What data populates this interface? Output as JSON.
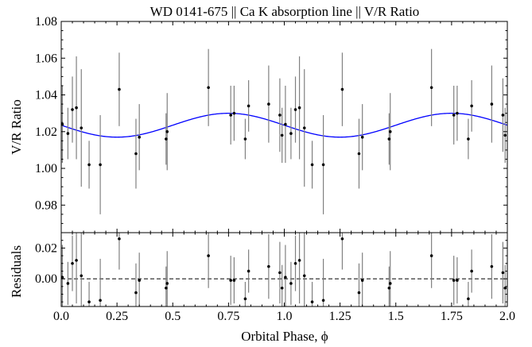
{
  "chart_data": [
    {
      "panel": "main",
      "type": "scatter",
      "title": "WD 0141-675 || Ca K absorption line || V/R Ratio",
      "xlabel": "",
      "ylabel": "V/R Ratio",
      "xlim": [
        0.0,
        2.0
      ],
      "ylim": [
        0.965,
        1.08
      ],
      "yticks": [
        "0.98",
        "1.00",
        "1.02",
        "1.04",
        "1.06",
        "1.08"
      ],
      "grid": false,
      "model_curve": {
        "type": "sinusoid",
        "mean": 1.0235,
        "amplitude": 0.0065,
        "period": 1.0,
        "peak_phase": 0.75,
        "color": "#0000ff"
      },
      "series": [
        {
          "marker_color": "#000000",
          "errorbar_color": "#808080",
          "points": [
            {
              "x": 0.005,
              "y": 1.024,
              "err": 0.021
            },
            {
              "x": 0.03,
              "y": 1.019,
              "err": 0.014
            },
            {
              "x": 0.05,
              "y": 1.032,
              "err": 0.018
            },
            {
              "x": 0.068,
              "y": 1.033,
              "err": 0.028
            },
            {
              "x": 0.09,
              "y": 1.022,
              "err": 0.032
            },
            {
              "x": 0.125,
              "y": 1.002,
              "err": 0.013
            },
            {
              "x": 0.175,
              "y": 1.002,
              "err": 0.027
            },
            {
              "x": 0.26,
              "y": 1.043,
              "err": 0.02
            },
            {
              "x": 0.335,
              "y": 1.008,
              "err": 0.019
            },
            {
              "x": 0.35,
              "y": 1.017,
              "err": 0.018
            },
            {
              "x": 0.47,
              "y": 1.016,
              "err": 0.014
            },
            {
              "x": 0.475,
              "y": 1.02,
              "err": 0.021
            },
            {
              "x": 0.66,
              "y": 1.044,
              "err": 0.021
            },
            {
              "x": 0.76,
              "y": 1.029,
              "err": 0.016
            },
            {
              "x": 0.775,
              "y": 1.03,
              "err": 0.015
            },
            {
              "x": 0.825,
              "y": 1.016,
              "err": 0.011
            },
            {
              "x": 0.84,
              "y": 1.034,
              "err": 0.014
            },
            {
              "x": 0.93,
              "y": 1.035,
              "err": 0.021
            },
            {
              "x": 0.98,
              "y": 1.029,
              "err": 0.02
            },
            {
              "x": 0.99,
              "y": 1.018,
              "err": 0.015
            },
            {
              "x": 1.005,
              "y": 1.024,
              "err": 0.021
            },
            {
              "x": 1.03,
              "y": 1.019,
              "err": 0.014
            },
            {
              "x": 1.05,
              "y": 1.032,
              "err": 0.018
            },
            {
              "x": 1.068,
              "y": 1.033,
              "err": 0.028
            },
            {
              "x": 1.09,
              "y": 1.022,
              "err": 0.032
            },
            {
              "x": 1.125,
              "y": 1.002,
              "err": 0.013
            },
            {
              "x": 1.175,
              "y": 1.002,
              "err": 0.027
            },
            {
              "x": 1.26,
              "y": 1.043,
              "err": 0.02
            },
            {
              "x": 1.335,
              "y": 1.008,
              "err": 0.019
            },
            {
              "x": 1.35,
              "y": 1.017,
              "err": 0.018
            },
            {
              "x": 1.47,
              "y": 1.016,
              "err": 0.014
            },
            {
              "x": 1.475,
              "y": 1.02,
              "err": 0.021
            },
            {
              "x": 1.66,
              "y": 1.044,
              "err": 0.021
            },
            {
              "x": 1.76,
              "y": 1.029,
              "err": 0.016
            },
            {
              "x": 1.775,
              "y": 1.03,
              "err": 0.015
            },
            {
              "x": 1.825,
              "y": 1.016,
              "err": 0.011
            },
            {
              "x": 1.84,
              "y": 1.034,
              "err": 0.014
            },
            {
              "x": 1.93,
              "y": 1.035,
              "err": 0.021
            },
            {
              "x": 1.98,
              "y": 1.029,
              "err": 0.02
            },
            {
              "x": 1.99,
              "y": 1.018,
              "err": 0.015
            }
          ]
        }
      ]
    },
    {
      "panel": "residuals",
      "type": "scatter",
      "title": "",
      "xlabel": "Orbital Phase, ϕ",
      "ylabel": "Residuals",
      "xlim": [
        0.0,
        2.0
      ],
      "ylim": [
        -0.018,
        0.03
      ],
      "xticks": [
        "0.0",
        "0.25",
        "0.5",
        "0.75",
        "1.0",
        "1.25",
        "1.5",
        "1.75",
        "2.0"
      ],
      "yticks": [
        "0.00",
        "0.02"
      ],
      "zero_line": {
        "y": 0,
        "style": "dashed",
        "color": "#000000"
      },
      "series": [
        {
          "marker_color": "#000000",
          "errorbar_color": "#808080",
          "points": [
            {
              "x": 0.005,
              "y": 0.001,
              "err": 0.021
            },
            {
              "x": 0.03,
              "y": -0.003,
              "err": 0.014
            },
            {
              "x": 0.05,
              "y": 0.01,
              "err": 0.018
            },
            {
              "x": 0.068,
              "y": 0.012,
              "err": 0.028
            },
            {
              "x": 0.09,
              "y": 0.002,
              "err": 0.032
            },
            {
              "x": 0.125,
              "y": -0.015,
              "err": 0.013
            },
            {
              "x": 0.175,
              "y": -0.014,
              "err": 0.027
            },
            {
              "x": 0.26,
              "y": 0.026,
              "err": 0.02
            },
            {
              "x": 0.335,
              "y": -0.009,
              "err": 0.019
            },
            {
              "x": 0.35,
              "y": -0.001,
              "err": 0.018
            },
            {
              "x": 0.47,
              "y": -0.006,
              "err": 0.014
            },
            {
              "x": 0.475,
              "y": -0.003,
              "err": 0.021
            },
            {
              "x": 0.66,
              "y": 0.015,
              "err": 0.021
            },
            {
              "x": 0.76,
              "y": -0.001,
              "err": 0.016
            },
            {
              "x": 0.775,
              "y": -0.001,
              "err": 0.015
            },
            {
              "x": 0.825,
              "y": -0.013,
              "err": 0.011
            },
            {
              "x": 0.84,
              "y": 0.005,
              "err": 0.014
            },
            {
              "x": 0.93,
              "y": 0.008,
              "err": 0.021
            },
            {
              "x": 0.98,
              "y": 0.004,
              "err": 0.02
            },
            {
              "x": 0.99,
              "y": -0.006,
              "err": 0.015
            },
            {
              "x": 1.005,
              "y": 0.001,
              "err": 0.021
            },
            {
              "x": 1.03,
              "y": -0.003,
              "err": 0.014
            },
            {
              "x": 1.05,
              "y": 0.01,
              "err": 0.018
            },
            {
              "x": 1.068,
              "y": 0.012,
              "err": 0.028
            },
            {
              "x": 1.09,
              "y": 0.002,
              "err": 0.032
            },
            {
              "x": 1.125,
              "y": -0.015,
              "err": 0.013
            },
            {
              "x": 1.175,
              "y": -0.014,
              "err": 0.027
            },
            {
              "x": 1.26,
              "y": 0.026,
              "err": 0.02
            },
            {
              "x": 1.335,
              "y": -0.009,
              "err": 0.019
            },
            {
              "x": 1.35,
              "y": -0.001,
              "err": 0.018
            },
            {
              "x": 1.47,
              "y": -0.006,
              "err": 0.014
            },
            {
              "x": 1.475,
              "y": -0.003,
              "err": 0.021
            },
            {
              "x": 1.66,
              "y": 0.015,
              "err": 0.021
            },
            {
              "x": 1.76,
              "y": -0.001,
              "err": 0.016
            },
            {
              "x": 1.775,
              "y": -0.001,
              "err": 0.015
            },
            {
              "x": 1.825,
              "y": -0.013,
              "err": 0.011
            },
            {
              "x": 1.84,
              "y": 0.005,
              "err": 0.014
            },
            {
              "x": 1.93,
              "y": 0.008,
              "err": 0.021
            },
            {
              "x": 1.98,
              "y": 0.004,
              "err": 0.02
            },
            {
              "x": 1.99,
              "y": -0.006,
              "err": 0.015
            }
          ]
        }
      ]
    }
  ]
}
